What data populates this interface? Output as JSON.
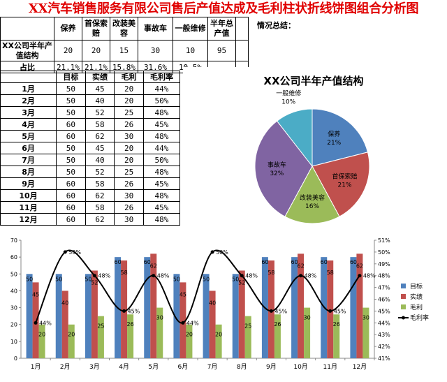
{
  "title": "XX汽车销售服务有限公司售后产值达成及毛利柱状折线饼图组合分析图",
  "summary_label": "情况总结：",
  "structure_table": {
    "headers": [
      "保养",
      "首保索赔",
      "改装美容",
      "事故车",
      "一般维修",
      "半年总产值"
    ],
    "value_row_label": "XX公司半年产值结构",
    "values": [
      "20",
      "20",
      "15",
      "30",
      "10",
      "95"
    ],
    "share_row_label": "占比",
    "shares": [
      "21.1%",
      "21.1%",
      "15.8%",
      "31.6%",
      "10.5%"
    ]
  },
  "monthly_table": {
    "headers": [
      "目标",
      "实绩",
      "毛利",
      "毛利率"
    ],
    "rows": [
      {
        "month": "1月",
        "target": "50",
        "actual": "45",
        "profit": "20",
        "rate": "44%"
      },
      {
        "month": "2月",
        "target": "50",
        "actual": "40",
        "profit": "20",
        "rate": "50%"
      },
      {
        "month": "3月",
        "target": "50",
        "actual": "52",
        "profit": "25",
        "rate": "48%"
      },
      {
        "month": "4月",
        "target": "60",
        "actual": "58",
        "profit": "26",
        "rate": "45%"
      },
      {
        "month": "5月",
        "target": "60",
        "actual": "62",
        "profit": "30",
        "rate": "48%"
      },
      {
        "month": "6月",
        "target": "50",
        "actual": "45",
        "profit": "20",
        "rate": "44%"
      },
      {
        "month": "7月",
        "target": "50",
        "actual": "40",
        "profit": "20",
        "rate": "50%"
      },
      {
        "month": "8月",
        "target": "50",
        "actual": "52",
        "profit": "25",
        "rate": "48%"
      },
      {
        "month": "9月",
        "target": "60",
        "actual": "58",
        "profit": "26",
        "rate": "45%"
      },
      {
        "month": "10月",
        "target": "60",
        "actual": "62",
        "profit": "30",
        "rate": "48%"
      },
      {
        "month": "11月",
        "target": "60",
        "actual": "58",
        "profit": "26",
        "rate": "45%"
      },
      {
        "month": "12月",
        "target": "60",
        "actual": "62",
        "profit": "30",
        "rate": "48%"
      }
    ]
  },
  "chart_data": [
    {
      "type": "pie",
      "title": "XX公司半年产值结构",
      "categories": [
        "保养",
        "首保索赔",
        "改装美容",
        "事故车",
        "一般维修"
      ],
      "values": [
        20,
        20,
        15,
        30,
        10
      ],
      "labels": [
        "21%",
        "21%",
        "16%",
        "32%",
        "10%"
      ],
      "colors": [
        "#4f81bd",
        "#c0504d",
        "#9bbb59",
        "#8064a2",
        "#4bacc6"
      ]
    },
    {
      "type": "bar",
      "categories": [
        "1月",
        "2月",
        "3月",
        "4月",
        "5月",
        "6月",
        "7月",
        "8月",
        "9月",
        "10月",
        "11月",
        "12月"
      ],
      "series": [
        {
          "name": "目标",
          "type": "bar",
          "values": [
            50,
            50,
            50,
            60,
            60,
            50,
            50,
            50,
            60,
            60,
            60,
            60
          ],
          "color": "#4f81bd"
        },
        {
          "name": "实绩",
          "type": "bar",
          "values": [
            45,
            40,
            52,
            58,
            62,
            45,
            40,
            52,
            58,
            62,
            58,
            62
          ],
          "color": "#c0504d"
        },
        {
          "name": "毛利",
          "type": "bar",
          "values": [
            20,
            20,
            25,
            26,
            30,
            20,
            20,
            25,
            26,
            30,
            26,
            30
          ],
          "color": "#9bbb59"
        },
        {
          "name": "毛利率",
          "type": "line",
          "axis": "secondary",
          "values": [
            44,
            50,
            48,
            45,
            48,
            44,
            50,
            48,
            45,
            48,
            45,
            48
          ],
          "value_labels": [
            "44%",
            "50%",
            "48%",
            "45%",
            "48%",
            "44%",
            "50%",
            "48%",
            "45%",
            "48%",
            "45%",
            "48%"
          ],
          "color": "#000000"
        }
      ],
      "ylim": [
        0,
        70
      ],
      "yticks": [
        "0",
        "10",
        "20",
        "30",
        "40",
        "50",
        "60",
        "70"
      ],
      "y2lim": [
        41,
        51
      ],
      "y2ticks": [
        "41%",
        "42%",
        "43%",
        "44%",
        "45%",
        "46%",
        "47%",
        "48%",
        "49%",
        "50%",
        "51%"
      ],
      "legend": "right",
      "grid": false
    }
  ]
}
